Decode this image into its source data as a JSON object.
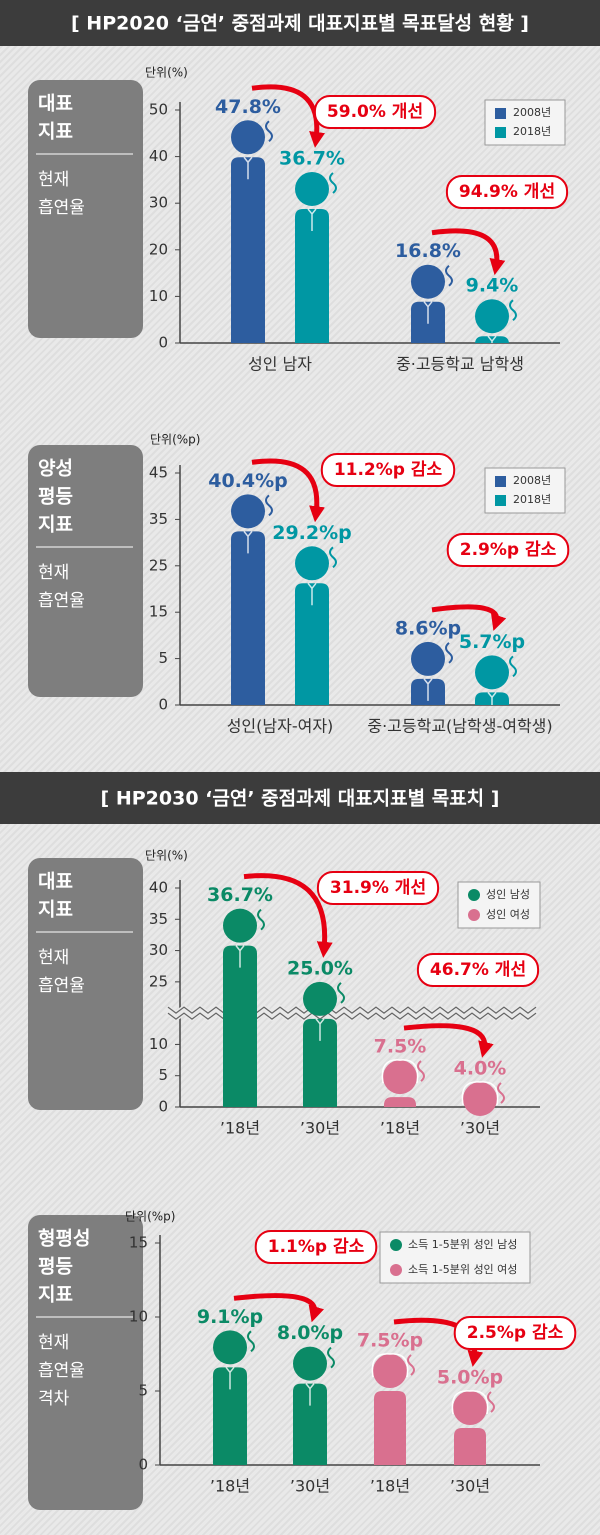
{
  "sections": [
    {
      "title": "[ HP2020 ‘금연’ 중점과제 대표지표별 목표달성 현황 ]"
    },
    {
      "title": "[ HP2030 ‘금연’ 중점과제 대표지표별 목표치 ]"
    }
  ],
  "chart_data": [
    {
      "type": "bar",
      "indicator": [
        "대표",
        "지표"
      ],
      "measure": [
        "현재",
        "흡연율"
      ],
      "unit": "단위(%)",
      "categories": [
        "성인 남자",
        "중·고등학교 남학생"
      ],
      "series": [
        {
          "name": "2008년",
          "color": "#2d5d9f",
          "values": [
            47.8,
            16.8
          ],
          "value_labels": [
            "47.8%",
            "16.8%"
          ]
        },
        {
          "name": "2018년",
          "color": "#0097a3",
          "values": [
            36.7,
            9.4
          ],
          "value_labels": [
            "36.7%",
            "9.4%"
          ]
        }
      ],
      "ylim": [
        0,
        50
      ],
      "yticks": [
        0,
        10,
        20,
        30,
        40,
        50
      ],
      "legend_marker": "square",
      "axis_break": false,
      "annotations": [
        "59.0% 개선",
        "94.9% 개선"
      ]
    },
    {
      "type": "bar",
      "indicator": [
        "양성",
        "평등",
        "지표"
      ],
      "measure": [
        "현재",
        "흡연율"
      ],
      "unit": "단위(%p)",
      "categories": [
        "성인(남자-여자)",
        "중·고등학교(남학생-여학생)"
      ],
      "series": [
        {
          "name": "2008년",
          "color": "#2d5d9f",
          "values": [
            40.4,
            8.6
          ],
          "value_labels": [
            "40.4%p",
            "8.6%p"
          ]
        },
        {
          "name": "2018년",
          "color": "#0097a3",
          "values": [
            29.2,
            5.7
          ],
          "value_labels": [
            "29.2%p",
            "5.7%p"
          ]
        }
      ],
      "ylim": [
        0,
        45
      ],
      "yticks": [
        0,
        5,
        15,
        25,
        35,
        45
      ],
      "legend_marker": "square",
      "axis_break": false,
      "annotations": [
        "11.2%p 감소",
        "2.9%p 감소"
      ]
    },
    {
      "type": "bar",
      "indicator": [
        "대표",
        "지표"
      ],
      "measure": [
        "현재",
        "흡연율"
      ],
      "unit": "단위(%)",
      "categories": [
        "’18년",
        "’30년",
        "’18년",
        "’30년"
      ],
      "series": [
        {
          "name": "성인 남성",
          "color": "#0b8a66",
          "values": [
            36.7,
            25.0,
            null,
            null
          ],
          "value_labels": [
            "36.7%",
            "25.0%",
            null,
            null
          ]
        },
        {
          "name": "성인 여성",
          "color": "#d9708f",
          "values": [
            null,
            null,
            7.5,
            4.0
          ],
          "value_labels": [
            null,
            null,
            "7.5%",
            "4.0%"
          ]
        }
      ],
      "ylim": [
        0,
        40
      ],
      "yticks": [
        0,
        5,
        10,
        25,
        30,
        35,
        40
      ],
      "legend_marker": "circle",
      "axis_break": true,
      "annotations": [
        "31.9% 개선",
        "46.7% 개선"
      ]
    },
    {
      "type": "bar",
      "indicator": [
        "형평성",
        "평등",
        "지표"
      ],
      "measure": [
        "현재",
        "흡연율",
        "격차"
      ],
      "unit": "단위(%p)",
      "categories": [
        "’18년",
        "’30년",
        "’18년",
        "’30년"
      ],
      "series": [
        {
          "name": "소득 1-5분위 성인 남성",
          "color": "#0b8a66",
          "values": [
            9.1,
            8.0,
            null,
            null
          ],
          "value_labels": [
            "9.1%p",
            "8.0%p",
            null,
            null
          ]
        },
        {
          "name": "소득 1-5분위 성인 여성",
          "color": "#d9708f",
          "values": [
            null,
            null,
            7.5,
            5.0
          ],
          "value_labels": [
            null,
            null,
            "7.5%p",
            "5.0%p"
          ]
        }
      ],
      "ylim": [
        0,
        15
      ],
      "yticks": [
        0,
        5,
        10,
        15
      ],
      "legend_marker": "circle",
      "axis_break": false,
      "annotations": [
        "1.1%p 감소",
        "2.5%p 감소"
      ]
    }
  ]
}
